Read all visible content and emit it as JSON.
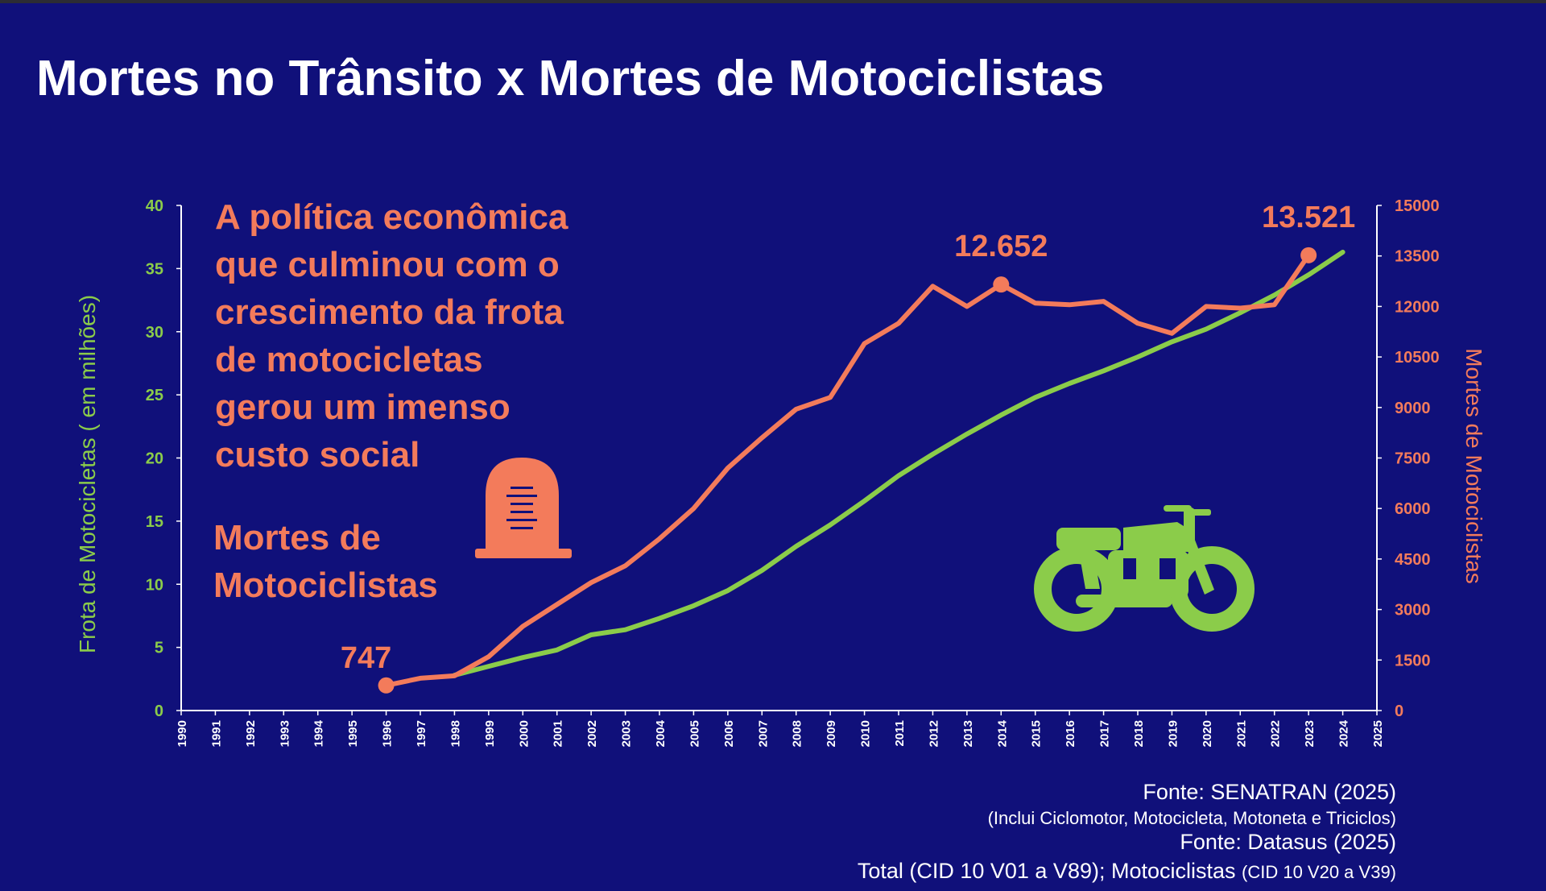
{
  "title": "Mortes no Trânsito x Mortes de Motociclistas",
  "annotation_lines": [
    "A política econômica",
    "que culminou com o",
    "crescimento da frota",
    "de motocicletas",
    "gerou um imenso",
    "custo social"
  ],
  "series_label_lines": [
    "Mortes de",
    "Motociclistas"
  ],
  "sources": {
    "line1": "Fonte: SENATRAN (2025)",
    "line2": "(Inclui Ciclomotor, Motocicleta, Motoneta e Triciclos)",
    "line3": "Fonte: Datasus (2025)",
    "line4_main": "Total (CID 10 V01 a V89); Motociclistas ",
    "line4_small": "(CID 10 V20 a V39)"
  },
  "icons": {
    "tombstone": "tombstone-icon",
    "motorcycle": "motorcycle-icon"
  },
  "colors": {
    "background": "#10107a",
    "fleet": "#8bcc4a",
    "deaths": "#f37b5b",
    "text": "#ffffff"
  },
  "chart_data": {
    "type": "line",
    "x": [
      1990,
      1991,
      1992,
      1993,
      1994,
      1995,
      1996,
      1997,
      1998,
      1999,
      2000,
      2001,
      2002,
      2003,
      2004,
      2005,
      2006,
      2007,
      2008,
      2009,
      2010,
      2011,
      2012,
      2013,
      2014,
      2015,
      2016,
      2017,
      2018,
      2019,
      2020,
      2021,
      2022,
      2023,
      2024,
      2025
    ],
    "xlim": [
      1990,
      2025
    ],
    "y_left_label": "Frota de Motocicletas ( em milhões)",
    "y_left_ticks": [
      0,
      5,
      10,
      15,
      20,
      25,
      30,
      35,
      40
    ],
    "y_left_lim": [
      0,
      40
    ],
    "y_right_label": "Mortes de Motociclistas",
    "y_right_ticks": [
      0,
      1500,
      3000,
      4500,
      6000,
      7500,
      9000,
      10500,
      12000,
      13500,
      15000
    ],
    "y_right_lim": [
      0,
      15000
    ],
    "series": [
      {
        "axis": "left",
        "color": "#8bcc4a",
        "x": [
          1998,
          1999,
          2000,
          2001,
          2002,
          2003,
          2004,
          2005,
          2006,
          2007,
          2008,
          2009,
          2010,
          2011,
          2012,
          2013,
          2014,
          2015,
          2016,
          2017,
          2018,
          2019,
          2020,
          2021,
          2022,
          2023,
          2024
        ],
        "values": [
          2.8,
          3.5,
          4.2,
          4.8,
          6.0,
          6.4,
          7.3,
          8.3,
          9.5,
          11.1,
          13.0,
          14.7,
          16.6,
          18.6,
          20.3,
          21.9,
          23.4,
          24.8,
          25.9,
          26.9,
          28.0,
          29.2,
          30.2,
          31.5,
          32.9,
          34.5,
          36.3
        ]
      },
      {
        "axis": "right",
        "color": "#f37b5b",
        "x": [
          1996,
          1997,
          1998,
          1999,
          2000,
          2001,
          2002,
          2003,
          2004,
          2005,
          2006,
          2007,
          2008,
          2009,
          2010,
          2011,
          2012,
          2013,
          2014,
          2015,
          2016,
          2017,
          2018,
          2019,
          2020,
          2021,
          2022,
          2023
        ],
        "values": [
          747,
          960,
          1030,
          1600,
          2500,
          3150,
          3800,
          4300,
          5100,
          6000,
          7200,
          8100,
          8950,
          9300,
          10900,
          11500,
          12600,
          12000,
          12652,
          12100,
          12050,
          12150,
          11500,
          11200,
          12000,
          11950,
          12050,
          13521
        ]
      }
    ],
    "annotations": [
      {
        "x": 1996,
        "value": 747,
        "text": "747"
      },
      {
        "x": 2014,
        "value": 12652,
        "text": "12.652"
      },
      {
        "x": 2023,
        "value": 13521,
        "text": "13.521"
      }
    ]
  }
}
